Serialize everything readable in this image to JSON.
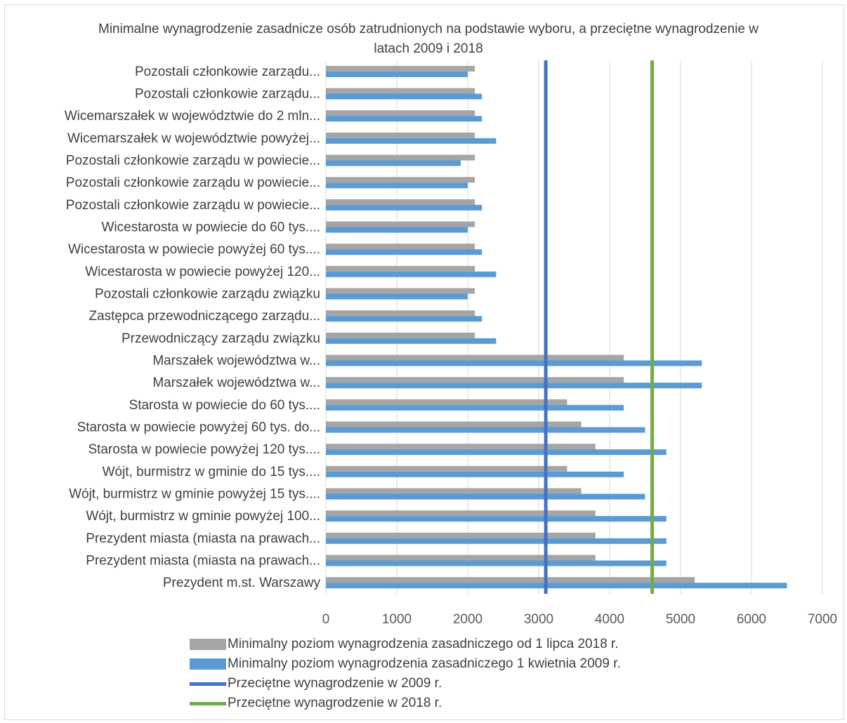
{
  "chart_data": {
    "type": "bar",
    "orientation": "horizontal",
    "title": "Minimalne wynagrodzenie zasadnicze osób zatrudnionych na podstawie wyboru, a przeciętne wynagrodzenie w latach 2009 i 2018",
    "categories": [
      "Pozostali członkowie zarządu...",
      "Pozostali członkowie zarządu...",
      "Wicemarszałek w województwie do 2 mln...",
      "Wicemarszałek w województwie powyżej...",
      "Pozostali członkowie zarządu w powiecie...",
      "Pozostali członkowie zarządu w powiecie...",
      "Pozostali członkowie zarządu w powiecie...",
      "Wicestarosta w powiecie do 60 tys....",
      "Wicestarosta w powiecie powyżej 60 tys....",
      "Wicestarosta w powiecie powyżej 120...",
      "Pozostali członkowie zarządu związku",
      "Zastępca przewodniczącego zarządu...",
      "Przewodniczący zarządu związku",
      "Marszałek województwa w...",
      "Marszałek województwa w...",
      "Starosta w powiecie do 60 tys....",
      "Starosta w powiecie powyżej 60 tys. do...",
      "Starosta w powiecie powyżej 120 tys....",
      "Wójt, burmistrz w gminie do 15 tys....",
      "Wójt, burmistrz w gminie powyżej 15 tys....",
      "Wójt, burmistrz w gminie powyżej 100...",
      "Prezydent miasta (miasta na prawach...",
      "Prezydent miasta (miasta na prawach...",
      "Prezydent m.st. Warszawy"
    ],
    "series": [
      {
        "name": "Minimalny poziom wynagrodzenia zasadniczego od 1 lipca 2018 r.",
        "color": "#a5a5a5",
        "values": [
          2100,
          2100,
          2100,
          2100,
          2100,
          2100,
          2100,
          2100,
          2100,
          2100,
          2100,
          2100,
          2100,
          4200,
          4200,
          3400,
          3600,
          3800,
          3400,
          3600,
          3800,
          3800,
          3800,
          5200
        ]
      },
      {
        "name": "Minimalny poziom wynagrodzenia zasadniczego 1 kwietnia 2009 r.",
        "color": "#5b9bd5",
        "values": [
          2000,
          2200,
          2200,
          2400,
          1900,
          2000,
          2200,
          2000,
          2200,
          2400,
          2000,
          2200,
          2400,
          5300,
          5300,
          4200,
          4500,
          4800,
          4200,
          4500,
          4800,
          4800,
          4800,
          6500
        ]
      }
    ],
    "reference_lines": [
      {
        "name": "Przeciętne wynagrodzenie w 2009 r.",
        "value": 3100,
        "color": "#4472c4"
      },
      {
        "name": "Przeciętne wynagrodzenie w 2018 r.",
        "value": 4600,
        "color": "#70ad47"
      }
    ],
    "x_ticks": [
      "0",
      "1000",
      "2000",
      "3000",
      "4000",
      "5000",
      "6000",
      "7000"
    ],
    "xlim": [
      0,
      7000
    ],
    "grid": true,
    "legend_position": "bottom"
  }
}
